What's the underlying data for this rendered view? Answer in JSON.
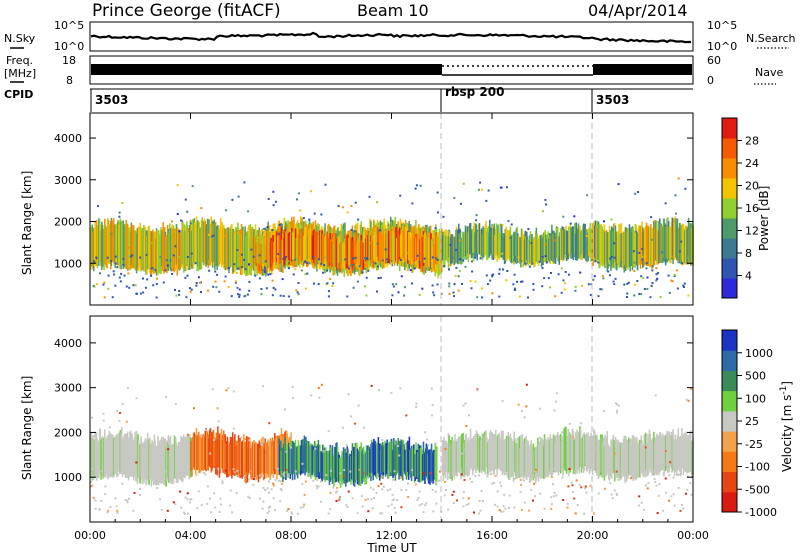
{
  "header": {
    "station": "Prince George (fitACF)",
    "beam": "Beam 10",
    "date": "04/Apr/2014"
  },
  "strip_labels": {
    "nsky": "N.Sky",
    "nsearch": "N.Search",
    "freq_line1": "Freq.",
    "freq_line2": "[MHz]",
    "nave": "Nave",
    "cpid": "CPID"
  },
  "strip_ticks": {
    "noise_left": [
      "10^5",
      "10^0"
    ],
    "noise_right": [
      "10^5",
      "10^0"
    ],
    "freq_left": [
      "18",
      "8"
    ],
    "nave_right": [
      "60",
      "0"
    ]
  },
  "cpid_segments": [
    {
      "label": "3503",
      "start_hour": 0,
      "end_hour": 14
    },
    {
      "label": "rbsp 200",
      "start_hour": 14,
      "end_hour": 20
    },
    {
      "label": "3503",
      "start_hour": 20,
      "end_hour": 24
    }
  ],
  "x_axis": {
    "label": "Time UT",
    "ticks": [
      "00:00",
      "04:00",
      "08:00",
      "12:00",
      "16:00",
      "20:00",
      "00:00"
    ]
  },
  "chart_data": [
    {
      "type": "heatmap",
      "title": "",
      "xlabel": "Time UT",
      "ylabel": "Slant Range [km]",
      "xlim": [
        0,
        24
      ],
      "ylim": [
        0,
        4600
      ],
      "yticks": [
        "1000",
        "2000",
        "3000",
        "4000"
      ],
      "colorbar": {
        "label": "Power [dB]",
        "range": [
          0,
          32
        ],
        "ticks": [
          "4",
          "8",
          "12",
          "16",
          "20",
          "24",
          "28"
        ]
      },
      "echo_bands": [
        {
          "start_hour": 0.0,
          "end_hour": 14.0,
          "range_low_km": 800,
          "range_high_km": 2000,
          "level_db": 18
        },
        {
          "start_hour": 6.5,
          "end_hour": 13.8,
          "range_low_km": 900,
          "range_high_km": 1800,
          "level_db": 24
        },
        {
          "start_hour": 14.0,
          "end_hour": 20.0,
          "range_low_km": 1000,
          "range_high_km": 1900,
          "level_db": 14
        },
        {
          "start_hour": 20.0,
          "end_hour": 24.0,
          "range_low_km": 900,
          "range_high_km": 2000,
          "level_db": 16
        }
      ]
    },
    {
      "type": "heatmap",
      "title": "",
      "xlabel": "Time UT",
      "ylabel": "Slant Range [km]",
      "xlim": [
        0,
        24
      ],
      "ylim": [
        0,
        4600
      ],
      "yticks": [
        "1000",
        "2000",
        "3000",
        "4000"
      ],
      "colorbar": {
        "label": "Velocity [m s^-1]",
        "ticks": [
          "1000",
          "500",
          "100",
          "25",
          "-25",
          "-100",
          "-500",
          "-1000"
        ]
      },
      "echo_bands": [
        {
          "start_hour": 0.0,
          "end_hour": 4.0,
          "range_low_km": 900,
          "range_high_km": 2000,
          "velocity": 0
        },
        {
          "start_hour": 4.0,
          "end_hour": 8.0,
          "range_low_km": 1000,
          "range_high_km": 2000,
          "velocity": -300
        },
        {
          "start_hour": 7.5,
          "end_hour": 13.8,
          "range_low_km": 900,
          "range_high_km": 1800,
          "velocity": 300
        },
        {
          "start_hour": 14.0,
          "end_hour": 24.0,
          "range_low_km": 1000,
          "range_high_km": 2000,
          "velocity": 0
        }
      ]
    }
  ],
  "colors": {
    "power_scale": [
      "#2b2bd9",
      "#2f55b3",
      "#3c7a94",
      "#4d9a6a",
      "#8fcf2f",
      "#f5c400",
      "#f78e00",
      "#f55a00",
      "#e01b10"
    ],
    "velocity_scale": [
      "#1a33c4",
      "#2c6aa8",
      "#3a8a5a",
      "#6fd140",
      "#c8c8c2",
      "#f2a24a",
      "#f57a16",
      "#e84514",
      "#d91a10"
    ],
    "ground_scatter": "#c8c8c2",
    "divider": "#bdbdbd"
  }
}
